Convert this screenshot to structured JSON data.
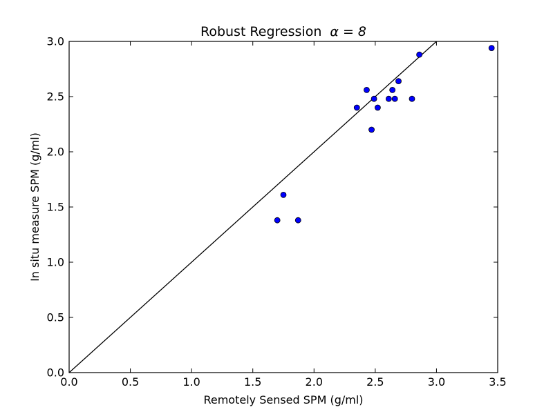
{
  "chart_data": {
    "type": "scatter",
    "title": "Robust Regression",
    "title_math": "α = 8",
    "xlabel": "Remotely Sensed SPM (g/ml)",
    "ylabel": "In situ measure SPM (g/ml)",
    "xlim": [
      0.0,
      3.5
    ],
    "ylim": [
      0.0,
      3.0
    ],
    "xticks": [
      "0.0",
      "0.5",
      "1.0",
      "1.5",
      "2.0",
      "2.5",
      "3.0",
      "3.5"
    ],
    "yticks": [
      "0.0",
      "0.5",
      "1.0",
      "1.5",
      "2.0",
      "2.5",
      "3.0"
    ],
    "grid": false,
    "marker_color": "#0000ff",
    "line_color": "#000000",
    "reference_line": {
      "x": [
        0.0,
        3.0
      ],
      "y": [
        0.0,
        3.0
      ]
    },
    "points": [
      {
        "x": 1.7,
        "y": 1.38
      },
      {
        "x": 1.75,
        "y": 1.61
      },
      {
        "x": 1.87,
        "y": 1.38
      },
      {
        "x": 2.35,
        "y": 2.4
      },
      {
        "x": 2.43,
        "y": 2.56
      },
      {
        "x": 2.47,
        "y": 2.2
      },
      {
        "x": 2.49,
        "y": 2.48
      },
      {
        "x": 2.52,
        "y": 2.4
      },
      {
        "x": 2.61,
        "y": 2.48
      },
      {
        "x": 2.64,
        "y": 2.56
      },
      {
        "x": 2.66,
        "y": 2.48
      },
      {
        "x": 2.69,
        "y": 2.64
      },
      {
        "x": 2.8,
        "y": 2.48
      },
      {
        "x": 2.86,
        "y": 2.88
      },
      {
        "x": 3.45,
        "y": 2.94
      }
    ]
  }
}
